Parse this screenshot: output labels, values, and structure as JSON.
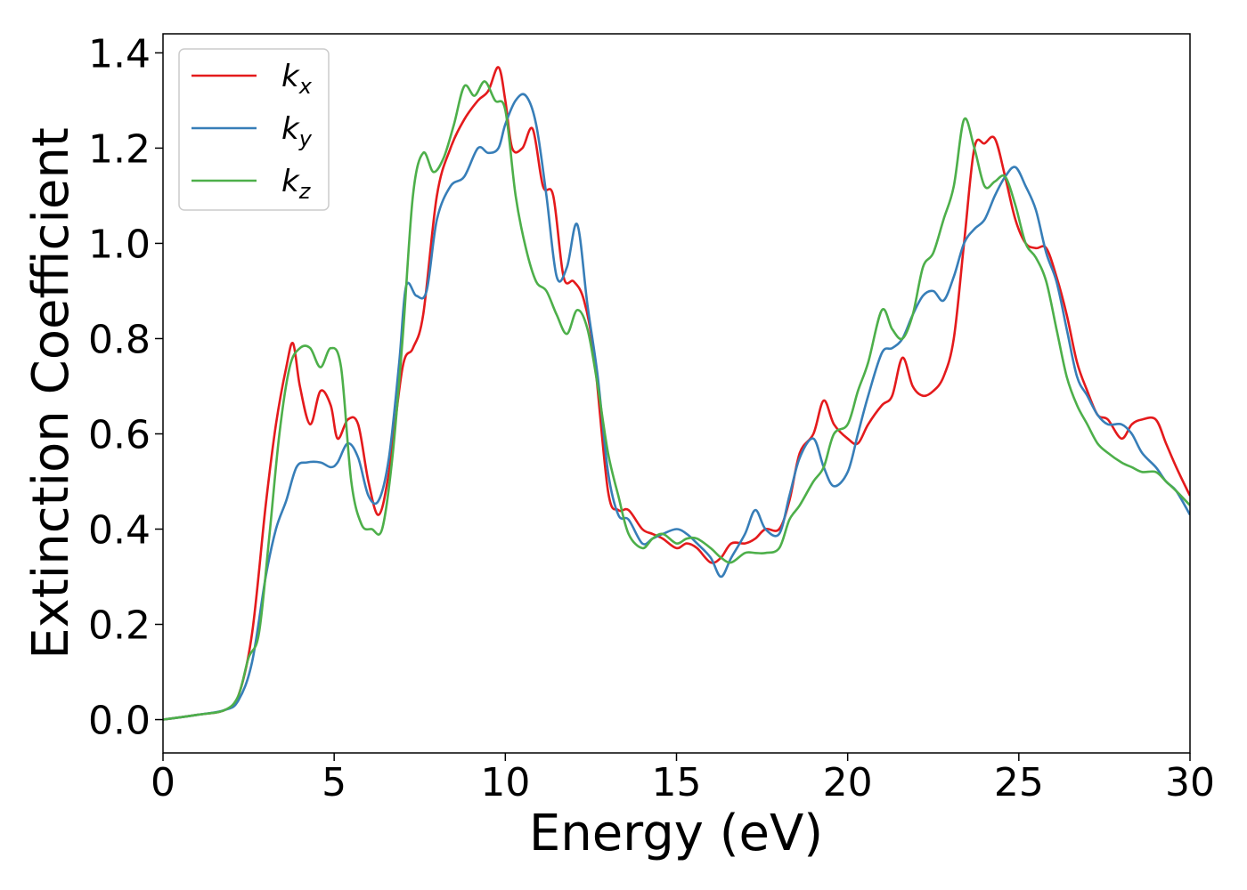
{
  "chart_data": {
    "type": "line",
    "title": "",
    "xlabel": "Energy (eV)",
    "ylabel": "Extinction Coefficient",
    "xlim": [
      0,
      30
    ],
    "ylim": [
      -0.07,
      1.44
    ],
    "xticks": [
      0,
      5,
      10,
      15,
      20,
      25,
      30
    ],
    "yticks": [
      0.0,
      0.2,
      0.4,
      0.6,
      0.8,
      1.0,
      1.2,
      1.4
    ],
    "grid": false,
    "legend_position": "upper-left",
    "series": [
      {
        "name": "k_x",
        "label_main": "k",
        "label_sub": "x",
        "color": "#e41a1c",
        "x": [
          0,
          1,
          1.8,
          2.2,
          2.6,
          3.0,
          3.3,
          3.6,
          3.8,
          4.0,
          4.3,
          4.6,
          4.9,
          5.1,
          5.4,
          5.7,
          6.0,
          6.3,
          6.6,
          7.0,
          7.3,
          7.6,
          8.0,
          8.4,
          8.8,
          9.2,
          9.5,
          9.8,
          10.0,
          10.2,
          10.5,
          10.8,
          11.1,
          11.4,
          11.7,
          12.0,
          12.3,
          12.6,
          13.0,
          13.3,
          13.6,
          14.0,
          14.3,
          14.6,
          15.0,
          15.3,
          15.6,
          16.0,
          16.3,
          16.6,
          17.0,
          17.3,
          17.6,
          18.0,
          18.3,
          18.6,
          19.0,
          19.3,
          19.6,
          20.0,
          20.3,
          20.6,
          21.0,
          21.3,
          21.6,
          21.9,
          22.2,
          22.5,
          22.8,
          23.1,
          23.4,
          23.7,
          24.0,
          24.3,
          24.6,
          24.9,
          25.2,
          25.5,
          25.8,
          26.1,
          26.4,
          26.7,
          27.0,
          27.3,
          27.6,
          28.0,
          28.3,
          28.6,
          29.0,
          29.3,
          29.6,
          30.0
        ],
        "y": [
          0.0,
          0.01,
          0.02,
          0.05,
          0.18,
          0.45,
          0.62,
          0.74,
          0.79,
          0.7,
          0.62,
          0.69,
          0.66,
          0.59,
          0.63,
          0.62,
          0.5,
          0.43,
          0.52,
          0.74,
          0.78,
          0.85,
          1.1,
          1.2,
          1.26,
          1.3,
          1.32,
          1.37,
          1.3,
          1.2,
          1.2,
          1.24,
          1.12,
          1.1,
          0.93,
          0.92,
          0.88,
          0.76,
          0.48,
          0.44,
          0.44,
          0.4,
          0.39,
          0.38,
          0.36,
          0.37,
          0.36,
          0.33,
          0.34,
          0.37,
          0.37,
          0.38,
          0.4,
          0.4,
          0.46,
          0.56,
          0.6,
          0.67,
          0.62,
          0.59,
          0.58,
          0.62,
          0.66,
          0.68,
          0.76,
          0.7,
          0.68,
          0.69,
          0.72,
          0.8,
          1.0,
          1.2,
          1.21,
          1.22,
          1.14,
          1.05,
          1.0,
          0.99,
          0.99,
          0.93,
          0.85,
          0.75,
          0.69,
          0.64,
          0.63,
          0.59,
          0.62,
          0.63,
          0.63,
          0.58,
          0.53,
          0.47
        ]
      },
      {
        "name": "k_y",
        "label_main": "k",
        "label_sub": "y",
        "color": "#377eb8",
        "x": [
          0,
          1,
          1.8,
          2.2,
          2.6,
          3.0,
          3.3,
          3.6,
          3.9,
          4.2,
          4.6,
          4.9,
          5.1,
          5.4,
          5.7,
          6.0,
          6.3,
          6.6,
          6.9,
          7.1,
          7.4,
          7.7,
          8.0,
          8.4,
          8.8,
          9.2,
          9.5,
          9.8,
          10.0,
          10.3,
          10.6,
          10.9,
          11.2,
          11.5,
          11.8,
          12.1,
          12.4,
          12.7,
          13.0,
          13.3,
          13.6,
          14.0,
          14.3,
          14.6,
          15.0,
          15.3,
          15.6,
          16.0,
          16.3,
          16.6,
          17.0,
          17.3,
          17.6,
          18.0,
          18.3,
          18.6,
          19.0,
          19.3,
          19.6,
          20.0,
          20.3,
          20.6,
          21.0,
          21.3,
          21.6,
          21.9,
          22.2,
          22.5,
          22.8,
          23.1,
          23.4,
          23.7,
          24.0,
          24.3,
          24.6,
          24.9,
          25.2,
          25.5,
          25.8,
          26.1,
          26.4,
          26.7,
          27.0,
          27.3,
          27.6,
          28.0,
          28.3,
          28.6,
          29.0,
          29.3,
          29.6,
          30.0
        ],
        "y": [
          0.0,
          0.01,
          0.02,
          0.04,
          0.12,
          0.3,
          0.4,
          0.46,
          0.53,
          0.54,
          0.54,
          0.53,
          0.54,
          0.58,
          0.55,
          0.47,
          0.46,
          0.55,
          0.75,
          0.91,
          0.89,
          0.9,
          1.05,
          1.12,
          1.14,
          1.2,
          1.19,
          1.2,
          1.25,
          1.3,
          1.31,
          1.25,
          1.1,
          0.93,
          0.95,
          1.04,
          0.87,
          0.72,
          0.52,
          0.43,
          0.42,
          0.37,
          0.38,
          0.39,
          0.4,
          0.39,
          0.37,
          0.34,
          0.3,
          0.34,
          0.39,
          0.44,
          0.4,
          0.39,
          0.47,
          0.55,
          0.59,
          0.53,
          0.49,
          0.52,
          0.6,
          0.68,
          0.77,
          0.78,
          0.8,
          0.85,
          0.89,
          0.9,
          0.88,
          0.93,
          1.0,
          1.03,
          1.05,
          1.1,
          1.14,
          1.16,
          1.12,
          1.07,
          0.98,
          0.92,
          0.82,
          0.72,
          0.68,
          0.64,
          0.62,
          0.62,
          0.6,
          0.56,
          0.53,
          0.5,
          0.48,
          0.43
        ]
      },
      {
        "name": "k_z",
        "label_main": "k",
        "label_sub": "z",
        "color": "#4daf4a",
        "x": [
          0,
          1,
          1.8,
          2.2,
          2.5,
          2.8,
          3.1,
          3.4,
          3.7,
          4.0,
          4.3,
          4.6,
          4.9,
          5.2,
          5.5,
          5.8,
          6.1,
          6.4,
          6.7,
          7.0,
          7.3,
          7.6,
          7.9,
          8.2,
          8.5,
          8.8,
          9.1,
          9.4,
          9.7,
          10.0,
          10.3,
          10.6,
          10.9,
          11.2,
          11.5,
          11.8,
          12.1,
          12.4,
          12.7,
          13.0,
          13.3,
          13.6,
          14.0,
          14.3,
          14.6,
          15.0,
          15.3,
          15.6,
          16.0,
          16.3,
          16.6,
          17.0,
          17.3,
          17.6,
          18.0,
          18.3,
          18.6,
          19.0,
          19.3,
          19.6,
          20.0,
          20.3,
          20.6,
          21.0,
          21.3,
          21.6,
          21.9,
          22.2,
          22.5,
          22.8,
          23.1,
          23.4,
          23.7,
          24.0,
          24.3,
          24.6,
          24.9,
          25.2,
          25.5,
          25.8,
          26.1,
          26.4,
          26.7,
          27.0,
          27.3,
          27.6,
          28.0,
          28.3,
          28.6,
          29.0,
          29.3,
          29.6,
          30.0
        ],
        "y": [
          0.0,
          0.01,
          0.02,
          0.05,
          0.13,
          0.18,
          0.38,
          0.6,
          0.74,
          0.78,
          0.78,
          0.74,
          0.78,
          0.74,
          0.5,
          0.41,
          0.4,
          0.4,
          0.55,
          0.8,
          1.1,
          1.19,
          1.15,
          1.18,
          1.25,
          1.33,
          1.31,
          1.34,
          1.3,
          1.28,
          1.1,
          0.99,
          0.92,
          0.9,
          0.85,
          0.81,
          0.86,
          0.82,
          0.7,
          0.56,
          0.47,
          0.39,
          0.36,
          0.38,
          0.39,
          0.37,
          0.38,
          0.38,
          0.36,
          0.34,
          0.33,
          0.35,
          0.35,
          0.35,
          0.36,
          0.42,
          0.45,
          0.5,
          0.53,
          0.6,
          0.62,
          0.69,
          0.75,
          0.86,
          0.82,
          0.8,
          0.85,
          0.95,
          0.98,
          1.05,
          1.12,
          1.26,
          1.2,
          1.12,
          1.13,
          1.14,
          1.08,
          1.0,
          0.97,
          0.92,
          0.82,
          0.72,
          0.66,
          0.62,
          0.58,
          0.56,
          0.54,
          0.53,
          0.52,
          0.52,
          0.5,
          0.48,
          0.45
        ]
      }
    ]
  }
}
